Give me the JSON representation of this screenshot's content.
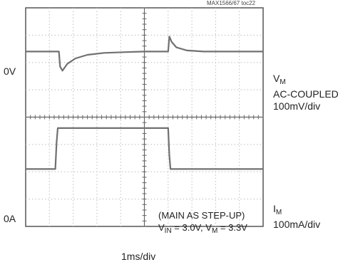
{
  "chart_data": {
    "type": "line",
    "figure_id": "MAX1566/67 toc22",
    "x_scale": "1ms/div",
    "divisions": {
      "x": 10,
      "y": 8
    },
    "grid": true,
    "traces": [
      {
        "name": "V_M",
        "ref_label": "0V",
        "caption": [
          "AC-COUPLED",
          "100mV/div"
        ],
        "points_div": [
          [
            0,
            1.6
          ],
          [
            1.25,
            1.6
          ],
          [
            1.4,
            1.6
          ],
          [
            1.45,
            2.15
          ],
          [
            1.55,
            2.3
          ],
          [
            1.75,
            2.05
          ],
          [
            2.1,
            1.85
          ],
          [
            2.6,
            1.72
          ],
          [
            3.3,
            1.65
          ],
          [
            4.2,
            1.62
          ],
          [
            5.0,
            1.6
          ],
          [
            6.0,
            1.6
          ],
          [
            6.05,
            1.05
          ],
          [
            6.15,
            1.25
          ],
          [
            6.35,
            1.45
          ],
          [
            6.8,
            1.56
          ],
          [
            7.5,
            1.6
          ],
          [
            10,
            1.6
          ]
        ]
      },
      {
        "name": "I_M",
        "ref_label": "0A",
        "caption": [
          "100mA/div"
        ],
        "points_div": [
          [
            0,
            5.9
          ],
          [
            1.25,
            5.9
          ],
          [
            1.3,
            4.95
          ],
          [
            1.35,
            4.4
          ],
          [
            6.0,
            4.4
          ],
          [
            6.05,
            5.4
          ],
          [
            6.1,
            5.9
          ],
          [
            10,
            5.9
          ]
        ]
      }
    ]
  },
  "labels": {
    "figure_id": "MAX1566/67 toc22",
    "vm_zero": "0V",
    "im_zero": "0A",
    "vm_name": "V",
    "vm_sub": "M",
    "vm_line2": "AC-COUPLED",
    "vm_line3": "100mV/div",
    "im_name": "I",
    "im_sub": "M",
    "im_line2": "100mA/div",
    "x_scale": "1ms/div",
    "note_line1": "(MAIN AS STEP-UP)",
    "note_v": "V",
    "note_in_sub": "IN",
    "note_vin_val": " = 3.0V, V",
    "note_m_sub": "M",
    "note_vm_val": " = 3.3V"
  }
}
